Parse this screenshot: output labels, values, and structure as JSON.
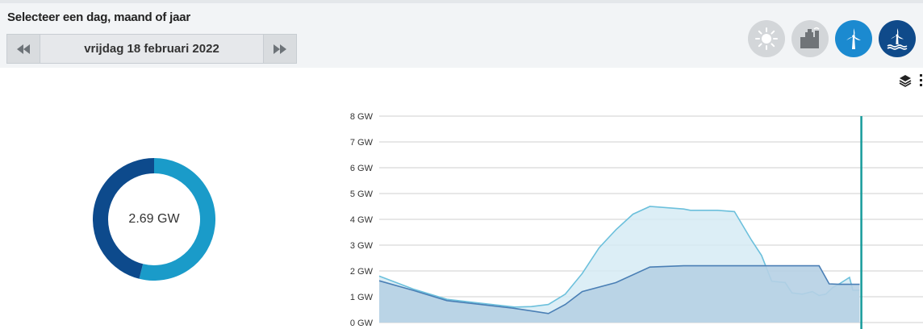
{
  "header": {
    "title": "Selecteer een dag, maand of jaar",
    "date_label": "vrijdag 18 februari 2022",
    "prev_icon": "rewind-icon",
    "next_icon": "fast-forward-icon"
  },
  "source_buttons": [
    {
      "name": "solar-icon",
      "state": "inactive"
    },
    {
      "name": "conventional-plant-icon",
      "state": "inactive"
    },
    {
      "name": "wind-onshore-icon",
      "state": "active"
    },
    {
      "name": "wind-offshore-icon",
      "state": "active"
    }
  ],
  "toolbar": {
    "layers_icon": "layers-icon",
    "more_icon": "more-icon"
  },
  "summary": {
    "value_label": "2.69 GW",
    "segments": [
      {
        "name": "wind-offshore",
        "value": 1.45,
        "color": "#1a9bc9"
      },
      {
        "name": "wind-onshore",
        "value": 1.24,
        "color": "#0d4a8c"
      }
    ]
  },
  "colors": {
    "accent_light": "#1b8ad0",
    "accent_dark": "#0f4a8a",
    "now_line": "#169b9b",
    "series_total_line": "#6cc0dc",
    "series_total_fill": "#d6ebf5",
    "series_part_line": "#4a7fb5",
    "series_part_fill": "#b6d0e4"
  },
  "chart_data": {
    "type": "area",
    "yaxis_ticks": [
      "0 GW",
      "1 GW",
      "2 GW",
      "3 GW",
      "4 GW",
      "5 GW",
      "6 GW",
      "7 GW",
      "8 GW"
    ],
    "ylim": [
      0,
      8
    ],
    "xlim": [
      0,
      24
    ],
    "grid": true,
    "now_hour": 14.25,
    "series": [
      {
        "x": [
          0,
          1,
          2,
          3,
          4,
          4.5,
          5,
          5.5,
          6,
          7,
          8,
          9,
          9.5,
          10,
          10.5,
          11,
          11.5,
          12,
          12.5,
          13,
          13.3,
          13.6,
          14,
          14.2
        ],
        "values": [
          1.62,
          1.25,
          0.85,
          0.7,
          0.55,
          0.45,
          0.35,
          0.7,
          1.2,
          1.55,
          2.15,
          2.2,
          2.2,
          2.2,
          2.2,
          2.2,
          2.2,
          2.2,
          2.2,
          2.2,
          1.5,
          1.48,
          1.48,
          1.48
        ]
      },
      {
        "x": [
          0,
          1,
          2,
          3,
          4,
          4.5,
          5,
          5.5,
          6,
          6.5,
          7,
          7.5,
          8,
          8.5,
          9,
          9.2,
          9.5,
          10,
          10.5,
          11,
          11.3,
          11.6,
          12,
          12.2,
          12.5,
          12.8,
          13.0,
          13.2,
          13.4,
          13.6,
          13.9,
          14.0,
          14.2
        ],
        "values": [
          1.8,
          1.3,
          0.9,
          0.75,
          0.6,
          0.62,
          0.7,
          1.1,
          1.9,
          2.9,
          3.6,
          4.2,
          4.5,
          4.45,
          4.4,
          4.35,
          4.35,
          4.35,
          4.3,
          3.2,
          2.6,
          1.6,
          1.55,
          1.15,
          1.1,
          1.2,
          1.05,
          1.1,
          1.35,
          1.5,
          1.75,
          1.25,
          1.25
        ]
      }
    ]
  }
}
